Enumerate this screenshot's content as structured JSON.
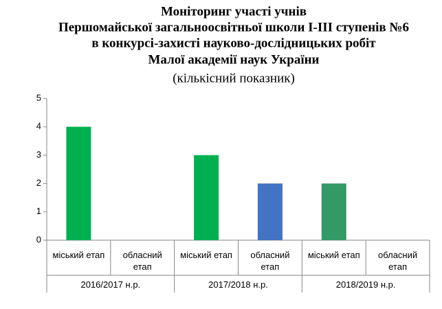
{
  "chart_data": {
    "type": "bar",
    "title": [
      "Моніторинг участі учнів",
      "Першомайської загальноосвітньої школи І-ІІІ ступенів №6",
      "в конкурсі-захисті науково-дослідницьких робіт",
      "Малої академії наук України"
    ],
    "subtitle": "(кількісний показник)",
    "categories": [
      "міський етап",
      "обласний етап",
      "міський етап",
      "обласний етап",
      "міський етап",
      "обласний етап"
    ],
    "groups": [
      "2016/2017  н.р.",
      "2017/2018  н.р.",
      "2018/2019  н.р."
    ],
    "values": [
      4,
      0,
      3,
      2,
      2,
      0
    ],
    "colors": [
      "#00b050",
      "#00b050",
      "#00b050",
      "#4472c4",
      "#339966",
      "#339966"
    ],
    "ylim": [
      0,
      5
    ],
    "yticks": [
      0,
      1,
      2,
      3,
      4,
      5
    ],
    "grid": false
  }
}
